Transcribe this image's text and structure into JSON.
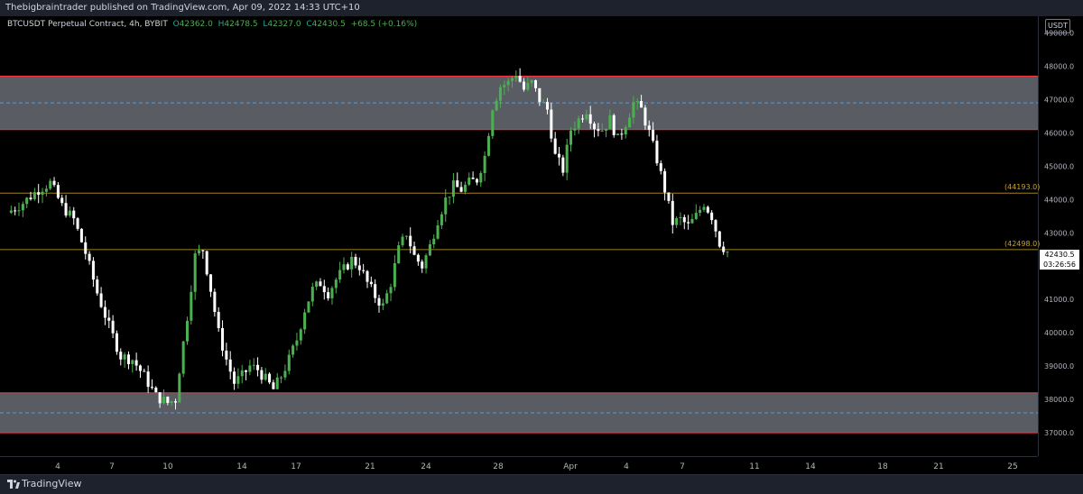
{
  "header": {
    "published": "Thebigbraintrader published on TradingView.com, Apr 09, 2022 14:33 UTC+10"
  },
  "legend": {
    "symbol": "BTCUSDT Perpetual Contract, 4h, BYBIT",
    "open_label": "O",
    "open": "42362.0",
    "high_label": "H",
    "high": "42478.5",
    "low_label": "L",
    "low": "42327.0",
    "close_label": "C",
    "close": "42430.5",
    "change": "+68.5 (+0.16%)"
  },
  "unit_badge": "USDT",
  "current_price": {
    "value": "42430.5",
    "countdown": "03:26:56"
  },
  "levels": [
    {
      "label": "(44193.0)",
      "price": 44193
    },
    {
      "label": "(42498.0)",
      "price": 42498
    }
  ],
  "footer": {
    "brand": "TradingView"
  },
  "colors": {
    "up": "#4caf50",
    "down": "#ffffff",
    "zone": "#787b86",
    "zone_border": "#f23645",
    "level": "#c9a227"
  },
  "chart_data": {
    "type": "candlestick",
    "symbol": "BTCUSDT",
    "interval": "4h",
    "ylim": [
      36300,
      49500
    ],
    "yticks": [
      37000,
      38000,
      39000,
      40000,
      41000,
      42000,
      43000,
      44000,
      45000,
      46000,
      47000,
      48000,
      49000
    ],
    "ytick_labels": [
      "37000.0",
      "38000.0",
      "39000.0",
      "40000.0",
      "41000.0",
      "42000.0",
      "43000.0",
      "44000.0",
      "45000.0",
      "46000.0",
      "47000.0",
      "48000.0",
      "49000.0"
    ],
    "xticks": [
      "4",
      "7",
      "10",
      "14",
      "17",
      "21",
      "24",
      "28",
      "Apr",
      "4",
      "7",
      "11",
      "14",
      "18",
      "21",
      "25"
    ],
    "zones": [
      {
        "low": 46100,
        "high": 47700,
        "mid": 46900
      },
      {
        "low": 37000,
        "high": 38200,
        "mid": 37600
      }
    ],
    "horizontal_levels": [
      44193,
      42498
    ],
    "price_path": [
      [
        0,
        43600
      ],
      [
        4,
        43900
      ],
      [
        8,
        44300
      ],
      [
        11,
        44500
      ],
      [
        14,
        43800
      ],
      [
        17,
        43400
      ],
      [
        20,
        42400
      ],
      [
        23,
        41200
      ],
      [
        26,
        40200
      ],
      [
        29,
        39300
      ],
      [
        32,
        39200
      ],
      [
        35,
        38700
      ],
      [
        38,
        38100
      ],
      [
        41,
        37900
      ],
      [
        43,
        38000
      ],
      [
        44,
        38900
      ],
      [
        46,
        40500
      ],
      [
        48,
        42300
      ],
      [
        50,
        42500
      ],
      [
        52,
        41300
      ],
      [
        54,
        40000
      ],
      [
        56,
        39200
      ],
      [
        58,
        38500
      ],
      [
        60,
        38700
      ],
      [
        62,
        39000
      ],
      [
        64,
        38900
      ],
      [
        66,
        38600
      ],
      [
        68,
        38300
      ],
      [
        70,
        38700
      ],
      [
        72,
        39200
      ],
      [
        74,
        39800
      ],
      [
        76,
        40700
      ],
      [
        78,
        41300
      ],
      [
        80,
        41500
      ],
      [
        82,
        41200
      ],
      [
        84,
        41600
      ],
      [
        86,
        41900
      ],
      [
        88,
        42200
      ],
      [
        90,
        42000
      ],
      [
        92,
        41500
      ],
      [
        94,
        41100
      ],
      [
        96,
        40800
      ],
      [
        98,
        41500
      ],
      [
        100,
        42500
      ],
      [
        102,
        43000
      ],
      [
        104,
        42300
      ],
      [
        106,
        42000
      ],
      [
        108,
        42600
      ],
      [
        110,
        43400
      ],
      [
        112,
        44000
      ],
      [
        114,
        44400
      ],
      [
        116,
        44300
      ],
      [
        118,
        44500
      ],
      [
        120,
        44600
      ],
      [
        122,
        45300
      ],
      [
        124,
        46800
      ],
      [
        126,
        47400
      ],
      [
        128,
        47500
      ],
      [
        130,
        47800
      ],
      [
        132,
        47300
      ],
      [
        134,
        47500
      ],
      [
        136,
        47000
      ],
      [
        138,
        46700
      ],
      [
        140,
        45300
      ],
      [
        142,
        44900
      ],
      [
        144,
        46100
      ],
      [
        146,
        46400
      ],
      [
        148,
        46700
      ],
      [
        150,
        46200
      ],
      [
        152,
        46100
      ],
      [
        154,
        46400
      ],
      [
        156,
        45800
      ],
      [
        158,
        46300
      ],
      [
        160,
        46900
      ],
      [
        162,
        46700
      ],
      [
        164,
        46000
      ],
      [
        166,
        45200
      ],
      [
        168,
        44300
      ],
      [
        170,
        43300
      ],
      [
        172,
        43400
      ],
      [
        174,
        43200
      ],
      [
        176,
        43500
      ],
      [
        178,
        43900
      ],
      [
        180,
        43500
      ],
      [
        182,
        42700
      ],
      [
        184,
        42430
      ]
    ]
  }
}
